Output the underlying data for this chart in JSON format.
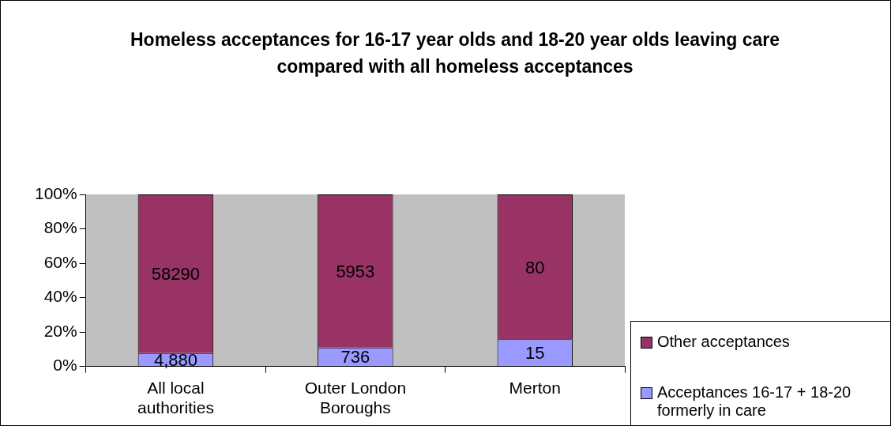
{
  "chart_data": {
    "type": "bar",
    "stacked": true,
    "title": "Homeless acceptances for 16-17 year olds and 18-20 year olds leaving care compared with all homeless  acceptances",
    "categories": [
      "All local authorities",
      "Outer London Boroughs",
      "Merton"
    ],
    "series": [
      {
        "name": "Acceptances 16-17 + 18-20 formerly in care",
        "color": "#9999ff",
        "values": [
          7.7,
          11,
          15.8
        ]
      },
      {
        "name": "Other acceptances",
        "color": "#993366",
        "values": [
          92.3,
          89,
          84.2
        ]
      }
    ],
    "annotations": [
      "4,880",
      "736",
      "15",
      "58290",
      "5953",
      "80"
    ],
    "ylim": [
      0,
      100
    ],
    "yticks": [
      {
        "value": 0,
        "label": "0%"
      },
      {
        "value": 20,
        "label": "20%"
      },
      {
        "value": 40,
        "label": "40%"
      },
      {
        "value": 60,
        "label": "60%"
      },
      {
        "value": 80,
        "label": "80%"
      },
      {
        "value": 100,
        "label": "100%"
      }
    ],
    "grid": false,
    "legend": "bottom right"
  }
}
